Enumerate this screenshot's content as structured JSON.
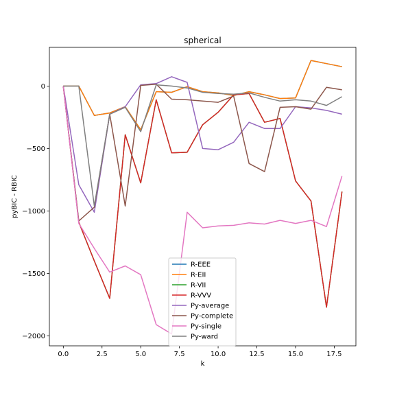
{
  "chart_data": {
    "type": "line",
    "title": "spherical",
    "xlabel": "k",
    "ylabel": "pyBIC - RBIC",
    "xlim": [
      -0.9,
      18.9
    ],
    "ylim": [
      -2080,
      310
    ],
    "xticks": [
      0.0,
      2.5,
      5.0,
      7.5,
      10.0,
      12.5,
      15.0,
      17.5
    ],
    "xtick_labels": [
      "0.0",
      "2.5",
      "5.0",
      "7.5",
      "10.0",
      "12.5",
      "15.0",
      "17.5"
    ],
    "yticks": [
      0,
      -500,
      -1000,
      -1500,
      -2000
    ],
    "ytick_labels": [
      "0",
      "−500",
      "−1000",
      "−1500",
      "−2000"
    ],
    "grid": false,
    "legend_position": "lower center",
    "x": [
      0,
      1,
      2,
      3,
      4,
      5,
      6,
      7,
      8,
      9,
      10,
      11,
      12,
      13,
      14,
      15,
      16,
      17,
      18
    ],
    "series": [
      {
        "name": "R-EEE",
        "color": "#1f77b4",
        "values": [
          0,
          0,
          -235,
          -215,
          -165,
          -350,
          -45,
          -50,
          -5,
          -45,
          -55,
          -75,
          -45,
          -70,
          -100,
          -95,
          205,
          180,
          155
        ]
      },
      {
        "name": "R-EII",
        "color": "#ff7f0e",
        "values": [
          0,
          0,
          -235,
          -215,
          -165,
          -350,
          -45,
          -50,
          -5,
          -45,
          -55,
          -75,
          -45,
          -70,
          -100,
          -95,
          205,
          180,
          155
        ]
      },
      {
        "name": "R-VII",
        "color": "#2ca02c",
        "values": [
          0,
          -1090,
          -1400,
          -1700,
          -390,
          -775,
          -110,
          -535,
          -530,
          -310,
          -210,
          -70,
          -60,
          -290,
          -260,
          -760,
          -920,
          -1770,
          -845
        ]
      },
      {
        "name": "R-VVV",
        "color": "#d62728",
        "values": [
          0,
          -1090,
          -1400,
          -1700,
          -390,
          -775,
          -110,
          -535,
          -530,
          -310,
          -210,
          -70,
          -60,
          -290,
          -260,
          -760,
          -920,
          -1770,
          -845
        ]
      },
      {
        "name": "Py-average",
        "color": "#9467bd",
        "values": [
          0,
          -790,
          -1010,
          -225,
          -165,
          10,
          20,
          75,
          30,
          -500,
          -510,
          -450,
          -290,
          -340,
          -340,
          -165,
          -175,
          -195,
          -225
        ]
      },
      {
        "name": "Py-complete",
        "color": "#8c564b",
        "values": [
          0,
          -1080,
          -970,
          -225,
          -960,
          5,
          15,
          -105,
          -110,
          -120,
          -130,
          -80,
          -620,
          -685,
          -170,
          -165,
          -185,
          -10,
          -30
        ]
      },
      {
        "name": "Py-single",
        "color": "#e377c2",
        "values": [
          0,
          -1100,
          -1300,
          -1490,
          -1440,
          -1510,
          -1910,
          -1985,
          -1010,
          -1135,
          -1120,
          -1115,
          -1095,
          -1105,
          -1075,
          -1100,
          -1075,
          -1125,
          -720
        ]
      },
      {
        "name": "Py-ward",
        "color": "#7f7f7f",
        "values": [
          0,
          0,
          -960,
          -225,
          -170,
          -365,
          10,
          0,
          -15,
          -50,
          -60,
          -65,
          -55,
          -90,
          -120,
          -110,
          -120,
          -155,
          -85
        ]
      }
    ]
  }
}
